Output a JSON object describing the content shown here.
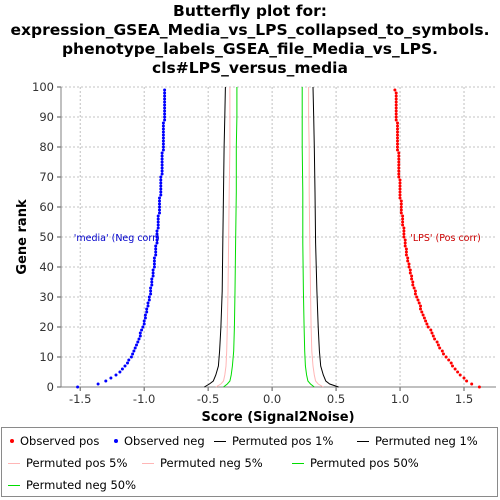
{
  "title_lines": [
    "Butterfly plot for:",
    "expression_GSEA_Media_vs_LPS_collapsed_to_symbols.",
    "phenotype_labels_GSEA_file_Media_vs_LPS.",
    "cls#LPS_versus_media"
  ],
  "chart_data": {
    "type": "scatter",
    "xlabel": "Score (Signal2Noise)",
    "ylabel": "Gene rank",
    "xlim": [
      -1.65,
      1.75
    ],
    "ylim": [
      0,
      100
    ],
    "xticks": [
      "-1.5",
      "-1.0",
      "-0.5",
      "0.0",
      "0.5",
      "1.0",
      "1.5"
    ],
    "yticks": [
      "0",
      "10",
      "20",
      "30",
      "40",
      "50",
      "60",
      "70",
      "80",
      "90",
      "100"
    ],
    "grid": true,
    "legend_placement": "bottom",
    "annotations": [
      {
        "text": "'media' (Neg corr)",
        "x": -1.55,
        "y": 50,
        "color": "#0000cc"
      },
      {
        "text": "'LPS' (Pos corr)",
        "x": 1.08,
        "y": 50,
        "color": "#cc0000"
      }
    ],
    "series": [
      {
        "name": "Observed pos",
        "kind": "points",
        "color": "#ff0000",
        "points": [
          [
            1.62,
            0
          ],
          [
            1.56,
            1
          ],
          [
            1.52,
            2
          ],
          [
            1.5,
            3
          ],
          [
            1.47,
            4
          ],
          [
            1.45,
            5
          ],
          [
            1.43,
            6
          ],
          [
            1.41,
            7
          ],
          [
            1.4,
            8
          ],
          [
            1.38,
            9
          ],
          [
            1.36,
            10
          ],
          [
            1.34,
            11
          ],
          [
            1.33,
            12
          ],
          [
            1.31,
            13
          ],
          [
            1.3,
            14
          ],
          [
            1.29,
            15
          ],
          [
            1.27,
            16
          ],
          [
            1.26,
            17
          ],
          [
            1.25,
            18
          ],
          [
            1.24,
            19
          ],
          [
            1.22,
            20
          ],
          [
            1.21,
            21
          ],
          [
            1.2,
            22
          ],
          [
            1.19,
            23
          ],
          [
            1.18,
            24
          ],
          [
            1.17,
            25
          ],
          [
            1.16,
            26
          ],
          [
            1.16,
            27
          ],
          [
            1.15,
            28
          ],
          [
            1.14,
            29
          ],
          [
            1.13,
            30
          ],
          [
            1.12,
            31
          ],
          [
            1.12,
            32
          ],
          [
            1.11,
            33
          ],
          [
            1.1,
            34
          ],
          [
            1.1,
            35
          ],
          [
            1.09,
            36
          ],
          [
            1.09,
            37
          ],
          [
            1.08,
            38
          ],
          [
            1.08,
            39
          ],
          [
            1.07,
            40
          ],
          [
            1.07,
            41
          ],
          [
            1.06,
            42
          ],
          [
            1.06,
            43
          ],
          [
            1.05,
            44
          ],
          [
            1.05,
            45
          ],
          [
            1.05,
            46
          ],
          [
            1.04,
            47
          ],
          [
            1.04,
            48
          ],
          [
            1.04,
            49
          ],
          [
            1.03,
            50
          ],
          [
            1.03,
            51
          ],
          [
            1.03,
            52
          ],
          [
            1.03,
            53
          ],
          [
            1.02,
            54
          ],
          [
            1.02,
            55
          ],
          [
            1.02,
            56
          ],
          [
            1.02,
            57
          ],
          [
            1.01,
            58
          ],
          [
            1.01,
            59
          ],
          [
            1.01,
            60
          ],
          [
            1.01,
            61
          ],
          [
            1.01,
            62
          ],
          [
            1.0,
            63
          ],
          [
            1.0,
            64
          ],
          [
            1.0,
            65
          ],
          [
            1.0,
            66
          ],
          [
            1.0,
            67
          ],
          [
            1.0,
            68
          ],
          [
            1.0,
            69
          ],
          [
            0.99,
            70
          ],
          [
            0.99,
            71
          ],
          [
            0.99,
            72
          ],
          [
            0.99,
            73
          ],
          [
            0.99,
            74
          ],
          [
            0.99,
            75
          ],
          [
            0.99,
            76
          ],
          [
            0.99,
            77
          ],
          [
            0.99,
            78
          ],
          [
            0.98,
            79
          ],
          [
            0.98,
            80
          ],
          [
            0.98,
            81
          ],
          [
            0.98,
            82
          ],
          [
            0.98,
            83
          ],
          [
            0.98,
            84
          ],
          [
            0.98,
            85
          ],
          [
            0.98,
            86
          ],
          [
            0.98,
            87
          ],
          [
            0.98,
            88
          ],
          [
            0.97,
            89
          ],
          [
            0.97,
            90
          ],
          [
            0.97,
            91
          ],
          [
            0.97,
            92
          ],
          [
            0.97,
            93
          ],
          [
            0.97,
            94
          ],
          [
            0.97,
            95
          ],
          [
            0.97,
            96
          ],
          [
            0.97,
            97
          ],
          [
            0.97,
            98
          ],
          [
            0.96,
            99
          ]
        ]
      },
      {
        "name": "Observed neg",
        "kind": "points",
        "color": "#0000ff",
        "points": [
          [
            -1.52,
            0
          ],
          [
            -1.36,
            1
          ],
          [
            -1.3,
            2
          ],
          [
            -1.26,
            3
          ],
          [
            -1.22,
            4
          ],
          [
            -1.19,
            5
          ],
          [
            -1.17,
            6
          ],
          [
            -1.15,
            7
          ],
          [
            -1.13,
            8
          ],
          [
            -1.12,
            9
          ],
          [
            -1.1,
            10
          ],
          [
            -1.09,
            11
          ],
          [
            -1.08,
            12
          ],
          [
            -1.07,
            13
          ],
          [
            -1.06,
            14
          ],
          [
            -1.05,
            15
          ],
          [
            -1.04,
            16
          ],
          [
            -1.03,
            17
          ],
          [
            -1.03,
            18
          ],
          [
            -1.02,
            19
          ],
          [
            -1.01,
            20
          ],
          [
            -1.0,
            21
          ],
          [
            -1.0,
            22
          ],
          [
            -0.99,
            23
          ],
          [
            -0.99,
            24
          ],
          [
            -0.98,
            25
          ],
          [
            -0.98,
            26
          ],
          [
            -0.97,
            27
          ],
          [
            -0.97,
            28
          ],
          [
            -0.96,
            29
          ],
          [
            -0.96,
            30
          ],
          [
            -0.95,
            31
          ],
          [
            -0.95,
            32
          ],
          [
            -0.95,
            33
          ],
          [
            -0.94,
            34
          ],
          [
            -0.94,
            35
          ],
          [
            -0.94,
            36
          ],
          [
            -0.93,
            37
          ],
          [
            -0.93,
            38
          ],
          [
            -0.93,
            39
          ],
          [
            -0.92,
            40
          ],
          [
            -0.92,
            41
          ],
          [
            -0.92,
            42
          ],
          [
            -0.92,
            43
          ],
          [
            -0.91,
            44
          ],
          [
            -0.91,
            45
          ],
          [
            -0.91,
            46
          ],
          [
            -0.91,
            47
          ],
          [
            -0.9,
            48
          ],
          [
            -0.9,
            49
          ],
          [
            -0.9,
            50
          ],
          [
            -0.9,
            51
          ],
          [
            -0.9,
            52
          ],
          [
            -0.89,
            53
          ],
          [
            -0.89,
            54
          ],
          [
            -0.89,
            55
          ],
          [
            -0.89,
            56
          ],
          [
            -0.89,
            57
          ],
          [
            -0.88,
            58
          ],
          [
            -0.88,
            59
          ],
          [
            -0.88,
            60
          ],
          [
            -0.88,
            61
          ],
          [
            -0.88,
            62
          ],
          [
            -0.88,
            63
          ],
          [
            -0.87,
            64
          ],
          [
            -0.87,
            65
          ],
          [
            -0.87,
            66
          ],
          [
            -0.87,
            67
          ],
          [
            -0.87,
            68
          ],
          [
            -0.87,
            69
          ],
          [
            -0.87,
            70
          ],
          [
            -0.86,
            71
          ],
          [
            -0.86,
            72
          ],
          [
            -0.86,
            73
          ],
          [
            -0.86,
            74
          ],
          [
            -0.86,
            75
          ],
          [
            -0.86,
            76
          ],
          [
            -0.86,
            77
          ],
          [
            -0.86,
            78
          ],
          [
            -0.85,
            79
          ],
          [
            -0.85,
            80
          ],
          [
            -0.85,
            81
          ],
          [
            -0.85,
            82
          ],
          [
            -0.85,
            83
          ],
          [
            -0.85,
            84
          ],
          [
            -0.85,
            85
          ],
          [
            -0.85,
            86
          ],
          [
            -0.85,
            87
          ],
          [
            -0.85,
            88
          ],
          [
            -0.84,
            89
          ],
          [
            -0.84,
            90
          ],
          [
            -0.84,
            91
          ],
          [
            -0.84,
            92
          ],
          [
            -0.84,
            93
          ],
          [
            -0.84,
            94
          ],
          [
            -0.84,
            95
          ],
          [
            -0.84,
            96
          ],
          [
            -0.84,
            97
          ],
          [
            -0.84,
            98
          ],
          [
            -0.84,
            99
          ]
        ]
      },
      {
        "name": "Permuted pos 1%",
        "kind": "line",
        "color": "#000000",
        "points": [
          [
            0.52,
            0
          ],
          [
            0.45,
            1
          ],
          [
            0.42,
            2
          ],
          [
            0.4,
            4
          ],
          [
            0.38,
            7
          ],
          [
            0.37,
            12
          ],
          [
            0.36,
            20
          ],
          [
            0.35,
            32
          ],
          [
            0.34,
            48
          ],
          [
            0.335,
            65
          ],
          [
            0.33,
            80
          ],
          [
            0.325,
            90
          ],
          [
            0.32,
            100
          ]
        ]
      },
      {
        "name": "Permuted neg 1%",
        "kind": "line",
        "color": "#000000",
        "points": [
          [
            -0.53,
            0
          ],
          [
            -0.49,
            1
          ],
          [
            -0.46,
            2
          ],
          [
            -0.44,
            4
          ],
          [
            -0.42,
            7
          ],
          [
            -0.41,
            12
          ],
          [
            -0.4,
            20
          ],
          [
            -0.39,
            32
          ],
          [
            -0.385,
            48
          ],
          [
            -0.38,
            65
          ],
          [
            -0.375,
            80
          ],
          [
            -0.37,
            90
          ],
          [
            -0.365,
            100
          ]
        ]
      },
      {
        "name": "Permuted pos 5%",
        "kind": "line",
        "color": "#ffb6b6",
        "points": [
          [
            0.4,
            0
          ],
          [
            0.36,
            1
          ],
          [
            0.34,
            2
          ],
          [
            0.33,
            4
          ],
          [
            0.32,
            7
          ],
          [
            0.31,
            12
          ],
          [
            0.305,
            20
          ],
          [
            0.3,
            32
          ],
          [
            0.295,
            48
          ],
          [
            0.29,
            65
          ],
          [
            0.29,
            80
          ],
          [
            0.285,
            90
          ],
          [
            0.285,
            100
          ]
        ]
      },
      {
        "name": "Permuted neg 5%",
        "kind": "line",
        "color": "#ffb6b6",
        "points": [
          [
            -0.44,
            0
          ],
          [
            -0.4,
            1
          ],
          [
            -0.38,
            2
          ],
          [
            -0.37,
            4
          ],
          [
            -0.36,
            7
          ],
          [
            -0.355,
            12
          ],
          [
            -0.35,
            20
          ],
          [
            -0.345,
            32
          ],
          [
            -0.34,
            48
          ],
          [
            -0.335,
            65
          ],
          [
            -0.33,
            80
          ],
          [
            -0.33,
            90
          ],
          [
            -0.33,
            100
          ]
        ]
      },
      {
        "name": "Permuted pos 50%",
        "kind": "line",
        "color": "#00dd00",
        "points": [
          [
            0.33,
            0
          ],
          [
            0.3,
            1
          ],
          [
            0.28,
            2
          ],
          [
            0.27,
            4
          ],
          [
            0.26,
            7
          ],
          [
            0.255,
            12
          ],
          [
            0.25,
            20
          ],
          [
            0.245,
            32
          ],
          [
            0.24,
            48
          ],
          [
            0.24,
            65
          ],
          [
            0.235,
            80
          ],
          [
            0.235,
            90
          ],
          [
            0.235,
            100
          ]
        ]
      },
      {
        "name": "Permuted neg 50%",
        "kind": "line",
        "color": "#00dd00",
        "points": [
          [
            -0.38,
            0
          ],
          [
            -0.35,
            1
          ],
          [
            -0.33,
            2
          ],
          [
            -0.32,
            4
          ],
          [
            -0.31,
            7
          ],
          [
            -0.3,
            12
          ],
          [
            -0.295,
            20
          ],
          [
            -0.29,
            32
          ],
          [
            -0.285,
            48
          ],
          [
            -0.28,
            65
          ],
          [
            -0.28,
            80
          ],
          [
            -0.275,
            90
          ],
          [
            -0.275,
            100
          ]
        ]
      }
    ]
  }
}
